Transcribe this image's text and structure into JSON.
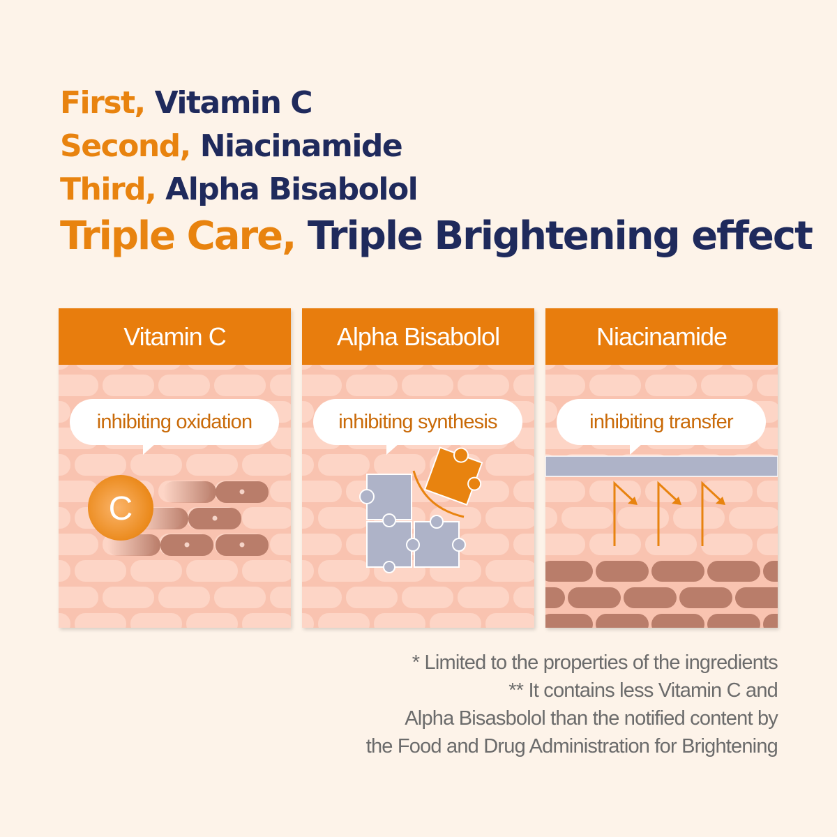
{
  "headline": {
    "lines": [
      {
        "lead": "First,",
        "rest": "Vitamin C"
      },
      {
        "lead": "Second,",
        "rest": "Niacinamide"
      },
      {
        "lead": "Third,",
        "rest": "Alpha Bisabolol"
      },
      {
        "lead": "Triple Care,",
        "rest": "Triple Brightening effect"
      }
    ]
  },
  "cards": [
    {
      "title": "Vitamin C",
      "caption": "inhibiting oxidation",
      "icon": "vitamin-c-circle",
      "icon_letter": "C"
    },
    {
      "title": "Alpha Bisabolol",
      "caption": "inhibiting synthesis",
      "icon": "puzzle-pieces"
    },
    {
      "title": "Niacinamide",
      "caption": "inhibiting transfer",
      "icon": "transfer-arrows"
    }
  ],
  "footnotes": [
    "* Limited to the properties of the ingredients",
    "** It contains less Vitamin C and",
    "Alpha Bisasbolol than the notified content by",
    "the Food and Drug Administration for Brightening"
  ],
  "colors": {
    "accent": "#e87d0d",
    "navy": "#1f2a5c",
    "skin": "#f9c6b3",
    "melanin": "#b97d6a",
    "puzzle": "#aeb3c8"
  }
}
